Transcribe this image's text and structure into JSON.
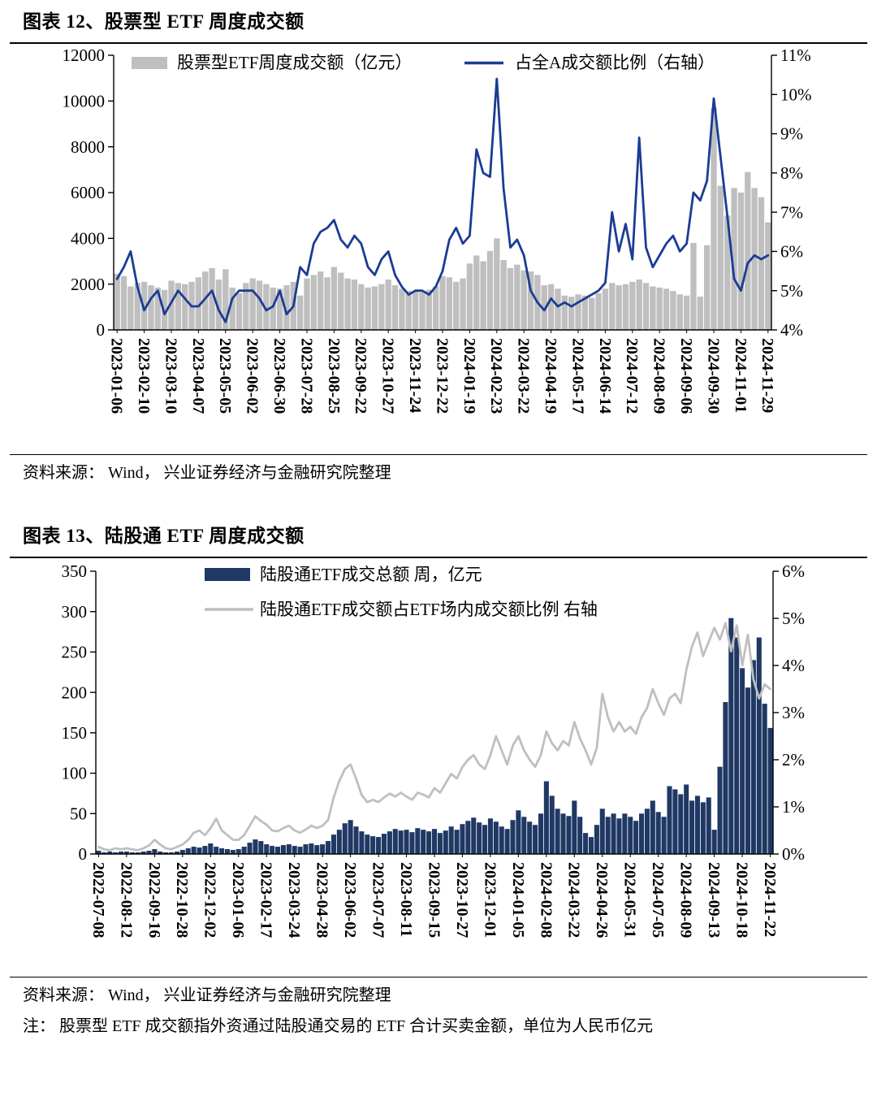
{
  "figure12": {
    "title": "图表 12、股票型 ETF 周度成交额",
    "source": "资料来源： Wind， 兴业证券经济与金融研究院整理"
  },
  "figure13": {
    "title": "图表 13、陆股通 ETF 周度成交额",
    "source": "资料来源： Wind， 兴业证券经济与金融研究院整理",
    "note": "注： 股票型 ETF 成交额指外资通过陆股通交易的 ETF 合计买卖金额，单位为人民币亿元"
  },
  "chart_data": [
    {
      "type": "bar+line",
      "title": "股票型 ETF 周度成交额",
      "legend": [
        "股票型ETF周度成交额（亿元）",
        "占全A成交额比例（右轴）"
      ],
      "bar_color": "#BFBFBF",
      "line_color": "#1B3B94",
      "left_axis": {
        "min": 0,
        "max": 12000,
        "step": 2000,
        "suffix": ""
      },
      "right_axis": {
        "min": 4,
        "max": 11,
        "step": 1,
        "suffix": "%"
      },
      "label_every": 4,
      "x_tick_labels": [
        "2023-01-06",
        "2023-02-10",
        "2023-03-10",
        "2023-04-07",
        "2023-05-05",
        "2023-06-02",
        "2023-06-30",
        "2023-07-28",
        "2023-08-25",
        "2023-09-22",
        "2023-10-27",
        "2023-11-24",
        "2023-12-22",
        "2024-01-19",
        "2024-02-23",
        "2024-03-22",
        "2024-04-19",
        "2024-05-17",
        "2024-06-14",
        "2024-07-12",
        "2024-08-09",
        "2024-09-06",
        "2024-09-30",
        "2024-11-01",
        "2024-11-29"
      ],
      "bars": [
        2450,
        2350,
        1900,
        2050,
        2100,
        1950,
        1850,
        1750,
        2150,
        2050,
        2000,
        2100,
        2300,
        2550,
        2700,
        2200,
        2650,
        1850,
        1600,
        2050,
        2250,
        2150,
        2000,
        1850,
        1800,
        1950,
        2100,
        1500,
        2250,
        2400,
        2550,
        2300,
        2750,
        2500,
        2250,
        2200,
        2000,
        1850,
        1900,
        2000,
        2200,
        1950,
        1800,
        1700,
        1700,
        1650,
        1750,
        1900,
        2350,
        2300,
        2100,
        2250,
        2900,
        3250,
        3000,
        3450,
        4000,
        3050,
        2700,
        2850,
        2600,
        2550,
        2400,
        1950,
        2000,
        1800,
        1500,
        1450,
        1550,
        1500,
        1400,
        1600,
        1800,
        2050,
        1950,
        2000,
        2100,
        2200,
        2050,
        1900,
        1850,
        1800,
        1700,
        1550,
        1500,
        3800,
        1450,
        3700,
        9700,
        6300,
        5000,
        6200,
        6000,
        6900,
        6200,
        5800,
        4700
      ],
      "line": [
        5.3,
        5.6,
        6.0,
        5.1,
        4.5,
        4.8,
        5.0,
        4.4,
        4.7,
        5.0,
        4.8,
        4.6,
        4.6,
        4.8,
        5.0,
        4.5,
        4.2,
        4.8,
        5.0,
        5.0,
        5.0,
        4.8,
        4.5,
        4.6,
        5.0,
        4.4,
        4.6,
        5.6,
        5.4,
        6.2,
        6.5,
        6.6,
        6.8,
        6.3,
        6.1,
        6.4,
        6.2,
        5.6,
        5.4,
        5.8,
        6.0,
        5.4,
        5.1,
        4.9,
        5.0,
        5.0,
        4.9,
        5.1,
        5.5,
        6.3,
        6.6,
        6.2,
        6.4,
        8.6,
        8.0,
        7.9,
        10.4,
        7.6,
        6.1,
        6.3,
        5.9,
        5.0,
        4.7,
        4.5,
        4.8,
        4.6,
        4.7,
        4.6,
        4.7,
        4.8,
        4.9,
        5.0,
        5.2,
        7.0,
        6.0,
        6.7,
        5.8,
        8.9,
        6.1,
        5.6,
        5.9,
        6.2,
        6.4,
        6.0,
        6.2,
        7.5,
        7.3,
        7.8,
        9.9,
        8.4,
        6.9,
        5.3,
        5.0,
        5.7,
        5.9,
        5.8,
        5.9
      ]
    },
    {
      "type": "bar+line",
      "title": "陆股通 ETF 周度成交额",
      "legend": [
        "陆股通ETF成交总额 周，亿元",
        "陆股通ETF成交额占ETF场内成交额比例 右轴"
      ],
      "bar_color": "#1F3864",
      "line_color": "#BFBFBF",
      "left_axis": {
        "min": 0,
        "max": 350,
        "step": 50,
        "suffix": ""
      },
      "right_axis": {
        "min": 0,
        "max": 6,
        "step": 1,
        "suffix": "%"
      },
      "label_every": 5,
      "x_tick_labels": [
        "2022-07-08",
        "2022-08-12",
        "2022-09-16",
        "2022-10-28",
        "2022-12-02",
        "2023-01-06",
        "2023-02-17",
        "2023-03-24",
        "2023-04-28",
        "2023-06-02",
        "2023-07-07",
        "2023-08-11",
        "2023-09-15",
        "2023-10-27",
        "2023-12-01",
        "2024-01-05",
        "2024-02-08",
        "2024-03-22",
        "2024-04-26",
        "2024-05-31",
        "2024-07-05",
        "2024-08-09",
        "2024-09-13",
        "2024-10-18",
        "2024-11-22"
      ],
      "bars": [
        4,
        2,
        3,
        2,
        3,
        3,
        2,
        2,
        3,
        4,
        6,
        3,
        2,
        2,
        3,
        5,
        7,
        9,
        8,
        10,
        13,
        9,
        7,
        6,
        5,
        6,
        9,
        14,
        18,
        16,
        12,
        10,
        9,
        11,
        12,
        10,
        9,
        12,
        13,
        11,
        12,
        16,
        24,
        30,
        38,
        42,
        34,
        28,
        24,
        22,
        21,
        25,
        28,
        31,
        29,
        30,
        27,
        32,
        30,
        28,
        31,
        26,
        29,
        34,
        30,
        37,
        41,
        45,
        39,
        36,
        44,
        40,
        34,
        31,
        42,
        54,
        46,
        40,
        36,
        50,
        90,
        72,
        56,
        50,
        47,
        66,
        46,
        26,
        21,
        36,
        56,
        46,
        50,
        44,
        50,
        46,
        41,
        50,
        56,
        66,
        52,
        46,
        84,
        80,
        74,
        86,
        66,
        72,
        64,
        70,
        30,
        108,
        188,
        292,
        268,
        230,
        206,
        240,
        268,
        186,
        156
      ],
      "line": [
        0.15,
        0.1,
        0.08,
        0.12,
        0.1,
        0.12,
        0.1,
        0.08,
        0.12,
        0.18,
        0.3,
        0.2,
        0.12,
        0.1,
        0.15,
        0.2,
        0.3,
        0.45,
        0.5,
        0.4,
        0.55,
        0.75,
        0.5,
        0.4,
        0.3,
        0.3,
        0.4,
        0.6,
        0.8,
        0.7,
        0.62,
        0.5,
        0.48,
        0.55,
        0.6,
        0.5,
        0.45,
        0.52,
        0.6,
        0.55,
        0.6,
        0.72,
        1.2,
        1.55,
        1.8,
        1.9,
        1.6,
        1.25,
        1.1,
        1.15,
        1.1,
        1.2,
        1.28,
        1.22,
        1.3,
        1.22,
        1.15,
        1.3,
        1.26,
        1.2,
        1.4,
        1.3,
        1.5,
        1.7,
        1.6,
        1.85,
        2.0,
        2.1,
        1.9,
        1.8,
        2.1,
        2.5,
        2.2,
        1.9,
        2.3,
        2.5,
        2.2,
        2.0,
        1.85,
        2.1,
        2.6,
        2.35,
        2.2,
        2.4,
        2.3,
        2.8,
        2.45,
        2.2,
        1.9,
        2.25,
        3.4,
        2.9,
        2.6,
        2.8,
        2.6,
        2.7,
        2.55,
        2.9,
        3.1,
        3.5,
        3.2,
        2.95,
        3.3,
        3.4,
        3.2,
        3.9,
        4.4,
        4.7,
        4.2,
        4.5,
        4.8,
        4.55,
        4.9,
        4.3,
        4.85,
        4.0,
        4.65,
        3.7,
        3.3,
        3.6,
        3.5
      ]
    }
  ]
}
